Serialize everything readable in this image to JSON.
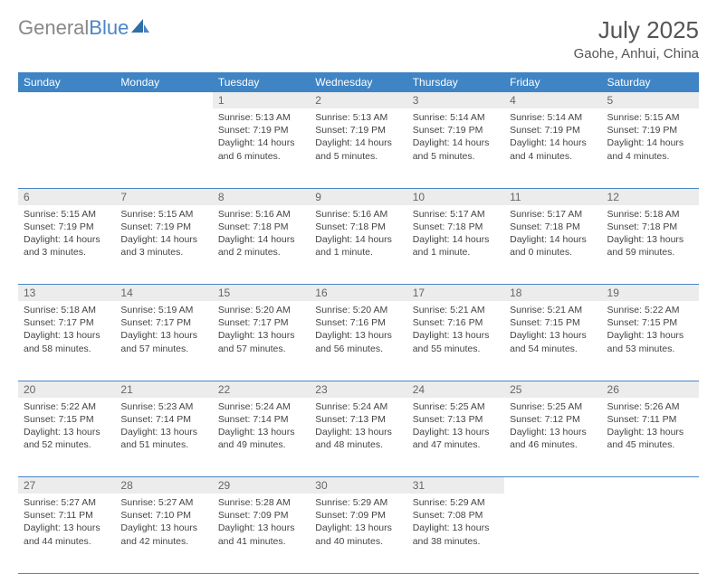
{
  "brand": {
    "part1": "General",
    "part2": "Blue"
  },
  "title": "July 2025",
  "location": "Gaohe, Anhui, China",
  "colors": {
    "header_bg": "#3f84c4",
    "header_text": "#ffffff",
    "daynum_bg": "#ececec",
    "daynum_text": "#666666",
    "cell_text": "#444444",
    "rule": "#4a86c5",
    "brand_gray": "#888888",
    "brand_blue": "#4a86c5",
    "background": "#ffffff"
  },
  "typography": {
    "title_fontsize": 26,
    "location_fontsize": 15,
    "header_fontsize": 12,
    "cell_fontsize": 10.5
  },
  "day_headers": [
    "Sunday",
    "Monday",
    "Tuesday",
    "Wednesday",
    "Thursday",
    "Friday",
    "Saturday"
  ],
  "weeks": [
    [
      null,
      null,
      {
        "n": "1",
        "sunrise": "Sunrise: 5:13 AM",
        "sunset": "Sunset: 7:19 PM",
        "daylight": "Daylight: 14 hours and 6 minutes."
      },
      {
        "n": "2",
        "sunrise": "Sunrise: 5:13 AM",
        "sunset": "Sunset: 7:19 PM",
        "daylight": "Daylight: 14 hours and 5 minutes."
      },
      {
        "n": "3",
        "sunrise": "Sunrise: 5:14 AM",
        "sunset": "Sunset: 7:19 PM",
        "daylight": "Daylight: 14 hours and 5 minutes."
      },
      {
        "n": "4",
        "sunrise": "Sunrise: 5:14 AM",
        "sunset": "Sunset: 7:19 PM",
        "daylight": "Daylight: 14 hours and 4 minutes."
      },
      {
        "n": "5",
        "sunrise": "Sunrise: 5:15 AM",
        "sunset": "Sunset: 7:19 PM",
        "daylight": "Daylight: 14 hours and 4 minutes."
      }
    ],
    [
      {
        "n": "6",
        "sunrise": "Sunrise: 5:15 AM",
        "sunset": "Sunset: 7:19 PM",
        "daylight": "Daylight: 14 hours and 3 minutes."
      },
      {
        "n": "7",
        "sunrise": "Sunrise: 5:15 AM",
        "sunset": "Sunset: 7:19 PM",
        "daylight": "Daylight: 14 hours and 3 minutes."
      },
      {
        "n": "8",
        "sunrise": "Sunrise: 5:16 AM",
        "sunset": "Sunset: 7:18 PM",
        "daylight": "Daylight: 14 hours and 2 minutes."
      },
      {
        "n": "9",
        "sunrise": "Sunrise: 5:16 AM",
        "sunset": "Sunset: 7:18 PM",
        "daylight": "Daylight: 14 hours and 1 minute."
      },
      {
        "n": "10",
        "sunrise": "Sunrise: 5:17 AM",
        "sunset": "Sunset: 7:18 PM",
        "daylight": "Daylight: 14 hours and 1 minute."
      },
      {
        "n": "11",
        "sunrise": "Sunrise: 5:17 AM",
        "sunset": "Sunset: 7:18 PM",
        "daylight": "Daylight: 14 hours and 0 minutes."
      },
      {
        "n": "12",
        "sunrise": "Sunrise: 5:18 AM",
        "sunset": "Sunset: 7:18 PM",
        "daylight": "Daylight: 13 hours and 59 minutes."
      }
    ],
    [
      {
        "n": "13",
        "sunrise": "Sunrise: 5:18 AM",
        "sunset": "Sunset: 7:17 PM",
        "daylight": "Daylight: 13 hours and 58 minutes."
      },
      {
        "n": "14",
        "sunrise": "Sunrise: 5:19 AM",
        "sunset": "Sunset: 7:17 PM",
        "daylight": "Daylight: 13 hours and 57 minutes."
      },
      {
        "n": "15",
        "sunrise": "Sunrise: 5:20 AM",
        "sunset": "Sunset: 7:17 PM",
        "daylight": "Daylight: 13 hours and 57 minutes."
      },
      {
        "n": "16",
        "sunrise": "Sunrise: 5:20 AM",
        "sunset": "Sunset: 7:16 PM",
        "daylight": "Daylight: 13 hours and 56 minutes."
      },
      {
        "n": "17",
        "sunrise": "Sunrise: 5:21 AM",
        "sunset": "Sunset: 7:16 PM",
        "daylight": "Daylight: 13 hours and 55 minutes."
      },
      {
        "n": "18",
        "sunrise": "Sunrise: 5:21 AM",
        "sunset": "Sunset: 7:15 PM",
        "daylight": "Daylight: 13 hours and 54 minutes."
      },
      {
        "n": "19",
        "sunrise": "Sunrise: 5:22 AM",
        "sunset": "Sunset: 7:15 PM",
        "daylight": "Daylight: 13 hours and 53 minutes."
      }
    ],
    [
      {
        "n": "20",
        "sunrise": "Sunrise: 5:22 AM",
        "sunset": "Sunset: 7:15 PM",
        "daylight": "Daylight: 13 hours and 52 minutes."
      },
      {
        "n": "21",
        "sunrise": "Sunrise: 5:23 AM",
        "sunset": "Sunset: 7:14 PM",
        "daylight": "Daylight: 13 hours and 51 minutes."
      },
      {
        "n": "22",
        "sunrise": "Sunrise: 5:24 AM",
        "sunset": "Sunset: 7:14 PM",
        "daylight": "Daylight: 13 hours and 49 minutes."
      },
      {
        "n": "23",
        "sunrise": "Sunrise: 5:24 AM",
        "sunset": "Sunset: 7:13 PM",
        "daylight": "Daylight: 13 hours and 48 minutes."
      },
      {
        "n": "24",
        "sunrise": "Sunrise: 5:25 AM",
        "sunset": "Sunset: 7:13 PM",
        "daylight": "Daylight: 13 hours and 47 minutes."
      },
      {
        "n": "25",
        "sunrise": "Sunrise: 5:25 AM",
        "sunset": "Sunset: 7:12 PM",
        "daylight": "Daylight: 13 hours and 46 minutes."
      },
      {
        "n": "26",
        "sunrise": "Sunrise: 5:26 AM",
        "sunset": "Sunset: 7:11 PM",
        "daylight": "Daylight: 13 hours and 45 minutes."
      }
    ],
    [
      {
        "n": "27",
        "sunrise": "Sunrise: 5:27 AM",
        "sunset": "Sunset: 7:11 PM",
        "daylight": "Daylight: 13 hours and 44 minutes."
      },
      {
        "n": "28",
        "sunrise": "Sunrise: 5:27 AM",
        "sunset": "Sunset: 7:10 PM",
        "daylight": "Daylight: 13 hours and 42 minutes."
      },
      {
        "n": "29",
        "sunrise": "Sunrise: 5:28 AM",
        "sunset": "Sunset: 7:09 PM",
        "daylight": "Daylight: 13 hours and 41 minutes."
      },
      {
        "n": "30",
        "sunrise": "Sunrise: 5:29 AM",
        "sunset": "Sunset: 7:09 PM",
        "daylight": "Daylight: 13 hours and 40 minutes."
      },
      {
        "n": "31",
        "sunrise": "Sunrise: 5:29 AM",
        "sunset": "Sunset: 7:08 PM",
        "daylight": "Daylight: 13 hours and 38 minutes."
      },
      null,
      null
    ]
  ]
}
